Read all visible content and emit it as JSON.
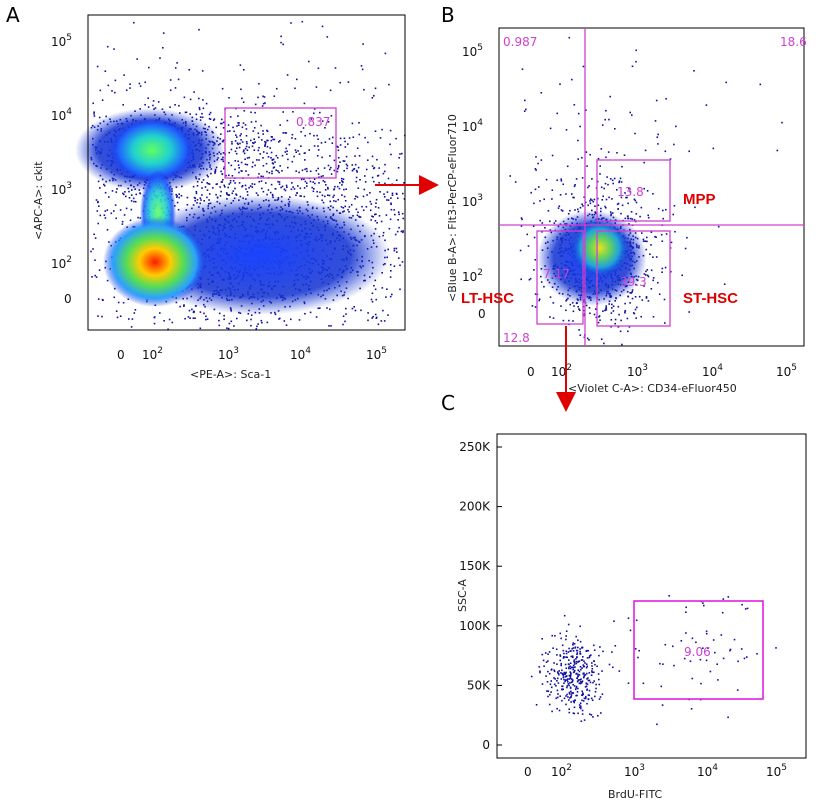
{
  "colors": {
    "gate": "#d040d0",
    "arrow": "#e00000",
    "population_label": "#e00000",
    "event_dot": "#1010a0"
  },
  "chart_data": [
    {
      "panel": "A",
      "type": "scatter",
      "subtype": "flow cytometry density plot (pseudocolor)",
      "xlabel": "<PE-A>: Sca-1",
      "ylabel": "<APC-A>: ckit",
      "x_ticks": [
        "0",
        "10^2",
        "10^3",
        "10^4",
        "10^5"
      ],
      "y_ticks": [
        "0",
        "10^2",
        "10^3",
        "10^4",
        "10^5"
      ],
      "scale": "biexponential (log)",
      "gates": [
        {
          "type": "rectangle",
          "percent": "0.837",
          "x_range": [
            800,
            40000
          ],
          "y_range": [
            1300,
            9000
          ]
        }
      ]
    },
    {
      "panel": "B",
      "type": "scatter",
      "subtype": "flow cytometry density plot (pseudocolor)",
      "xlabel": "<Violet C-A>: CD34-eFluor450",
      "ylabel": "<Blue B-A>: Flt3-PerCP-eFluor710",
      "x_ticks": [
        "0",
        "10^2",
        "10^3",
        "10^4",
        "10^5"
      ],
      "y_ticks": [
        "0",
        "10^2",
        "10^3",
        "10^4",
        "10^5"
      ],
      "scale": "biexponential (log)",
      "quadrants": [
        "0.987",
        "18.6",
        "12.8"
      ],
      "gates": [
        {
          "label": "MPP",
          "percent": "13.8",
          "x_range": [
            300,
            2500
          ],
          "y_range": [
            550,
            3500
          ]
        },
        {
          "label": "LT-HSC",
          "percent": "7.17",
          "x_range": [
            20,
            200
          ],
          "y_range": [
            -40,
            400
          ]
        },
        {
          "label": "ST-HSC",
          "percent": "39.3",
          "x_range": [
            300,
            2500
          ],
          "y_range": [
            -40,
            400
          ]
        }
      ]
    },
    {
      "panel": "C",
      "type": "scatter",
      "subtype": "flow cytometry dot plot",
      "xlabel": "BrdU-FITC",
      "ylabel": "SSC-A",
      "x_ticks": [
        "0",
        "10^2",
        "10^3",
        "10^4",
        "10^5"
      ],
      "y_ticks": [
        "0",
        "50K",
        "100K",
        "150K",
        "200K",
        "250K"
      ],
      "ylim": [
        0,
        260000
      ],
      "gates": [
        {
          "type": "rectangle",
          "percent": "9.06",
          "x_range": [
            900,
            60000
          ],
          "y_range": [
            38000,
            122000
          ]
        }
      ]
    }
  ],
  "panels": {
    "a": {
      "letter": "A",
      "xlabel": "<PE-A>: Sca-1",
      "ylabel": "<APC-A>: ckit",
      "gate_pct": "0.837"
    },
    "b": {
      "letter": "B",
      "xlabel": "<Violet C-A>: CD34-eFluor450",
      "ylabel": "<Blue B-A>: Flt3-PerCP-eFluor710",
      "q_ul": "0.987",
      "q_ur": "18.6",
      "q_ll": "12.8",
      "mpp_pct": "13.8",
      "lt_pct": "7.17",
      "st_pct": "39.3",
      "mpp_label": "MPP",
      "lt_label": "LT-HSC",
      "st_label": "ST-HSC"
    },
    "c": {
      "letter": "C",
      "xlabel": "BrdU-FITC",
      "ylabel": "SSC-A",
      "gate_pct": "9.06"
    }
  },
  "ticks": {
    "log_x": [
      "0",
      "10",
      "10",
      "10",
      "10"
    ],
    "log_exp": [
      "",
      "2",
      "3",
      "4",
      "5"
    ],
    "c_y": [
      "0",
      "50K",
      "100K",
      "150K",
      "200K",
      "250K"
    ]
  }
}
